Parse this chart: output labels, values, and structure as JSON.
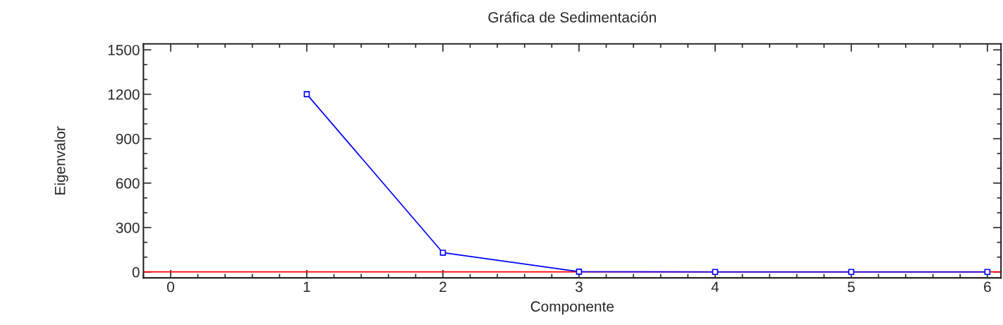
{
  "chart_data": {
    "type": "line",
    "title": "Gráfica de Sedimentación",
    "xlabel": "Componente",
    "ylabel": "Eigenvalor",
    "x": [
      1,
      2,
      3,
      4,
      5,
      6
    ],
    "series": [
      {
        "color": "#0000ff",
        "values": [
          1200,
          130,
          2,
          0,
          0,
          0
        ]
      }
    ],
    "marker": "square",
    "line_style": "solid",
    "xlim": [
      -0.2,
      6.1
    ],
    "xticks": [
      0,
      1,
      2,
      3,
      4,
      5,
      6
    ],
    "ylim": [
      -40,
      1540
    ],
    "yticks": [
      0,
      300,
      600,
      900,
      1200,
      1500
    ],
    "ref_lines": [
      {
        "axis": "y",
        "value": 1,
        "color": "#ff0000",
        "line_style": "solid"
      }
    ],
    "grid": false,
    "legend": false
  }
}
